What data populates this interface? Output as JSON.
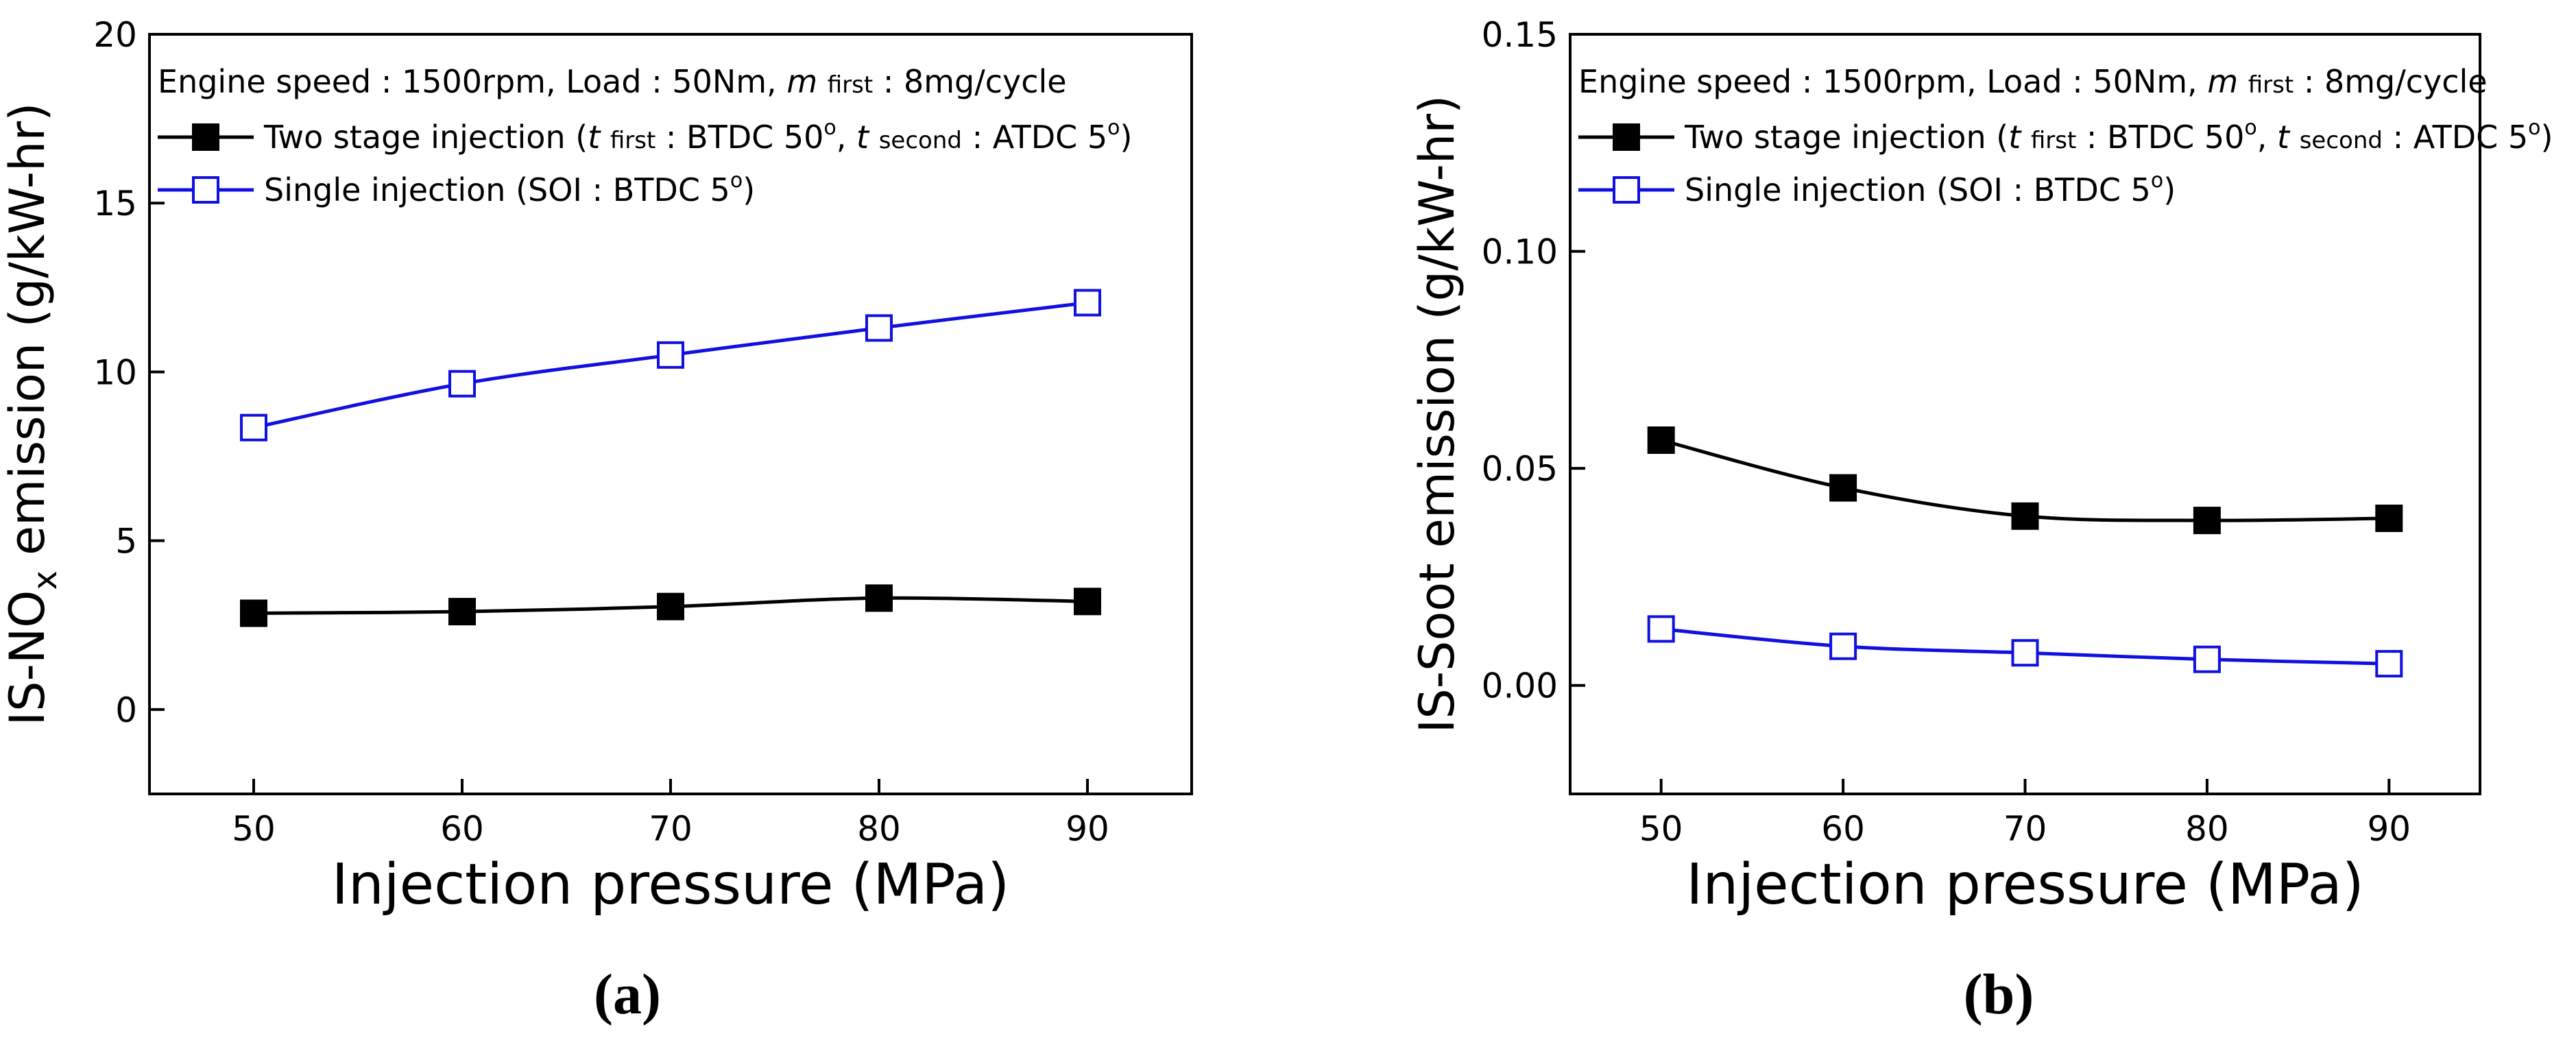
{
  "colors": {
    "series_two_stage": "#000000",
    "series_single": "#1010e0",
    "axis": "#000000"
  },
  "chart_data": [
    {
      "panel_label": "(a)",
      "type": "line",
      "xlabel": "Injection pressure (MPa)",
      "ylabel_pre": "IS-NO",
      "ylabel_sub": "x",
      "ylabel_post": " emission (g/kW-hr)",
      "xlim": [
        45,
        95
      ],
      "ylim": [
        -2.5,
        20
      ],
      "xticks": [
        "50",
        "60",
        "70",
        "80",
        "90"
      ],
      "xtick_values": [
        50,
        60,
        70,
        80,
        90
      ],
      "yticks": [
        "0",
        "5",
        "10",
        "15",
        "20"
      ],
      "ytick_values": [
        0,
        5,
        10,
        15,
        20
      ],
      "grid": false,
      "legend_position": "top-left",
      "legend_header": {
        "pre": "Engine speed : 1500rpm, Load : 50Nm, ",
        "m": "m",
        "m_sub": "first",
        "post": " : 8mg/cycle"
      },
      "series": [
        {
          "name": "Two stage injection",
          "legend_text": {
            "pre": "Two stage injection (",
            "t1": "t",
            "t1_sub": "first",
            "mid": " : BTDC 50",
            "sup1": "o",
            "sep": ", ",
            "t2": "t",
            "t2_sub": "second",
            "post": " : ATDC 5",
            "sup2": "o",
            "end": ")"
          },
          "marker": "filled-square",
          "x": [
            50,
            60,
            70,
            80,
            90
          ],
          "y": [
            2.85,
            2.9,
            3.05,
            3.3,
            3.2
          ]
        },
        {
          "name": "Single injection",
          "legend_text": {
            "pre": "Single injection (SOI : BTDC 5",
            "sup": "o",
            "end": ")"
          },
          "marker": "open-square",
          "x": [
            50,
            60,
            70,
            80,
            90
          ],
          "y": [
            8.35,
            9.65,
            10.5,
            11.3,
            12.05
          ]
        }
      ]
    },
    {
      "panel_label": "(b)",
      "type": "line",
      "xlabel": "Injection pressure (MPa)",
      "ylabel_pre": "IS-Soot emission (g/kW-hr)",
      "ylabel_sub": "",
      "ylabel_post": "",
      "xlim": [
        45,
        95
      ],
      "ylim": [
        -0.025,
        0.15
      ],
      "xticks": [
        "50",
        "60",
        "70",
        "80",
        "90"
      ],
      "xtick_values": [
        50,
        60,
        70,
        80,
        90
      ],
      "yticks": [
        "0.00",
        "0.05",
        "0.10",
        "0.15"
      ],
      "ytick_values": [
        0,
        0.05,
        0.1,
        0.15
      ],
      "grid": false,
      "legend_position": "top-left",
      "legend_header": {
        "pre": "Engine speed : 1500rpm, Load : 50Nm, ",
        "m": "m",
        "m_sub": "first",
        "post": " : 8mg/cycle"
      },
      "series": [
        {
          "name": "Two stage injection",
          "legend_text": {
            "pre": "Two stage injection (",
            "t1": "t",
            "t1_sub": "first",
            "mid": " : BTDC 50",
            "sup1": "o",
            "sep": ", ",
            "t2": "t",
            "t2_sub": "second",
            "post": " : ATDC 5",
            "sup2": "o",
            "end": ")"
          },
          "marker": "filled-square",
          "x": [
            50,
            60,
            70,
            80,
            90
          ],
          "y": [
            0.0565,
            0.0455,
            0.039,
            0.038,
            0.0385
          ]
        },
        {
          "name": "Single injection",
          "legend_text": {
            "pre": "Single injection (SOI : BTDC 5",
            "sup": "o",
            "end": ")"
          },
          "marker": "open-square",
          "x": [
            50,
            60,
            70,
            80,
            90
          ],
          "y": [
            0.013,
            0.009,
            0.0075,
            0.006,
            0.005
          ]
        }
      ]
    }
  ]
}
